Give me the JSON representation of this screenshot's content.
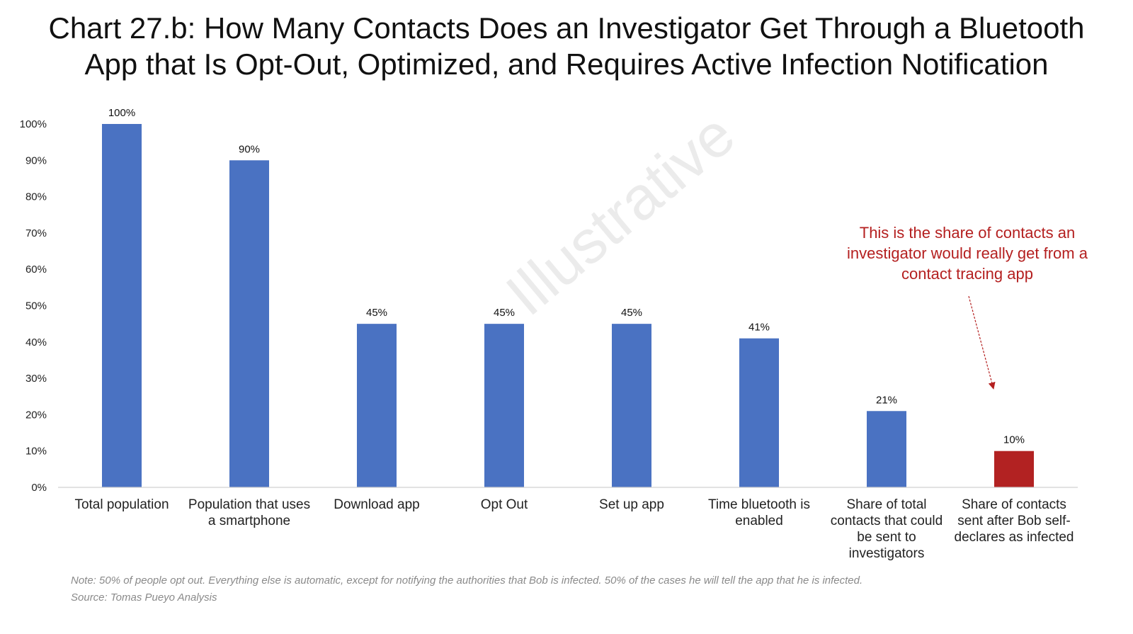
{
  "chart_data": {
    "type": "bar",
    "title": "Chart 27.b: How Many Contacts Does an Investigator Get Through a Bluetooth App that Is Opt-Out, Optimized, and Requires Active Infection Notification",
    "title_lines": [
      "Chart 27.b: How Many Contacts Does an Investigator Get Through a Bluetooth",
      "App that Is Opt-Out, Optimized, and Requires Active Infection Notification"
    ],
    "categories": [
      "Total population",
      "Population that uses a smartphone",
      "Download app",
      "Opt Out",
      "Set up app",
      "Time bluetooth is enabled",
      "Share of total contacts that could be sent to investigators",
      "Share of contacts sent after Bob self-declares as infected"
    ],
    "category_lines": [
      [
        "Total population"
      ],
      [
        "Population that uses",
        "a smartphone"
      ],
      [
        "Download app"
      ],
      [
        "Opt Out"
      ],
      [
        "Set up app"
      ],
      [
        "Time bluetooth is",
        "enabled"
      ],
      [
        "Share of total",
        "contacts that could",
        "be sent to",
        "investigators"
      ],
      [
        "Share of contacts",
        "sent after Bob self-",
        "declares as infected"
      ]
    ],
    "values": [
      100,
      90,
      45,
      45,
      45,
      41,
      21,
      10
    ],
    "value_labels": [
      "100%",
      "90%",
      "45%",
      "45%",
      "45%",
      "41%",
      "21%",
      "10%"
    ],
    "bar_colors": [
      "#4a72c2",
      "#4a72c2",
      "#4a72c2",
      "#4a72c2",
      "#4a72c2",
      "#4a72c2",
      "#4a72c2",
      "#b22222"
    ],
    "ylim": [
      0,
      100
    ],
    "yticks": [
      0,
      10,
      20,
      30,
      40,
      50,
      60,
      70,
      80,
      90,
      100
    ],
    "ytick_labels": [
      "0%",
      "10%",
      "20%",
      "30%",
      "40%",
      "50%",
      "60%",
      "70%",
      "80%",
      "90%",
      "100%"
    ],
    "xlabel": "",
    "ylabel": "",
    "grid": false,
    "legend": "none",
    "watermark": "Illustrative",
    "annotation": {
      "text_lines": [
        "This is the share of contacts an",
        "investigator would really get from a",
        "contact tracing app"
      ],
      "color": "#b41f1f",
      "points_to_category": "Share of contacts sent after Bob self-declares as infected"
    }
  },
  "footnote": {
    "note": "Note: 50% of people opt out. Everything else is automatic, except for notifying the authorities that Bob is infected. 50% of the cases he will tell the app that he is infected.",
    "source": "Source: Tomas Pueyo Analysis"
  },
  "colors": {
    "bar_blue": "#4a72c2",
    "bar_red": "#b22222",
    "annotation_red": "#b41f1f",
    "footnote_gray": "#8a8a8a"
  }
}
